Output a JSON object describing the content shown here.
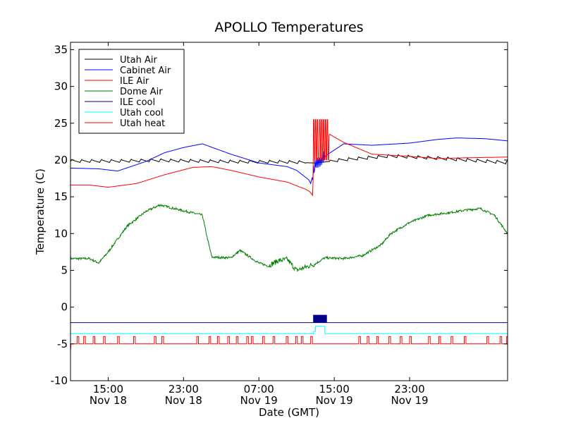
{
  "chart_data": {
    "type": "line",
    "title": "APOLLO Temperatures",
    "xlabel": "Date (GMT)",
    "ylabel": "Temperature (C)",
    "ylim": [
      -10,
      36
    ],
    "xlim": [
      11,
      57.4
    ],
    "x_units": "hours since Nov 18 00:00 GMT",
    "yticks": [
      {
        "value": -10,
        "label": "-10"
      },
      {
        "value": -5,
        "label": "-5"
      },
      {
        "value": 0,
        "label": "0"
      },
      {
        "value": 5,
        "label": "5"
      },
      {
        "value": 10,
        "label": "10"
      },
      {
        "value": 15,
        "label": "15"
      },
      {
        "value": 20,
        "label": "20"
      },
      {
        "value": 25,
        "label": "25"
      },
      {
        "value": 30,
        "label": "30"
      },
      {
        "value": 35,
        "label": "35"
      }
    ],
    "xticks": [
      {
        "value": 15,
        "time": "15:00",
        "date": "Nov 18"
      },
      {
        "value": 23,
        "time": "23:00",
        "date": "Nov 18"
      },
      {
        "value": 31,
        "time": "07:00",
        "date": "Nov 19"
      },
      {
        "value": 39,
        "time": "15:00",
        "date": "Nov 19"
      },
      {
        "value": 47,
        "time": "23:00",
        "date": "Nov 19"
      }
    ],
    "legend_position": "top-left",
    "series": [
      {
        "name": "Utah Air",
        "color": "#000000",
        "pattern": "sawtooth",
        "x": [
          11,
          16,
          20,
          25,
          29,
          33,
          37,
          40,
          45,
          50,
          55,
          57.4
        ],
        "y": [
          19.8,
          19.8,
          19.9,
          19.8,
          19.7,
          19.7,
          19.6,
          20.0,
          20.5,
          20.2,
          19.8,
          19.6
        ]
      },
      {
        "name": "Cabinet Air",
        "color": "#0000ff",
        "pattern": "smooth",
        "x": [
          11,
          14,
          16,
          19,
          21,
          23,
          25,
          28,
          31,
          34,
          35,
          36.3,
          36.5,
          37,
          37.6,
          38,
          40,
          43,
          47,
          50,
          52,
          55,
          57.4
        ],
        "y": [
          18.9,
          18.8,
          18.5,
          19.8,
          21.0,
          21.7,
          22.2,
          20.8,
          19.6,
          19.1,
          18.6,
          17.3,
          16.8,
          19.5,
          20.0,
          20.5,
          22.2,
          22.0,
          22.3,
          22.8,
          23.0,
          22.9,
          22.6
        ]
      },
      {
        "name": "ILE Air",
        "color": "#ff0000",
        "pattern": "smooth",
        "x": [
          11,
          13,
          15,
          18,
          21,
          24,
          26,
          28,
          31,
          34,
          36,
          36.4,
          36.7,
          36.8,
          38.5,
          40,
          43,
          47,
          50,
          53,
          57.4
        ],
        "y": [
          16.6,
          16.6,
          16.3,
          16.8,
          18.0,
          19.0,
          19.1,
          18.6,
          17.7,
          17.0,
          16.0,
          15.7,
          15.2,
          19.5,
          23.5,
          22.4,
          20.8,
          20.5,
          20.2,
          20.3,
          20.4
        ]
      },
      {
        "name": "Dome Air",
        "color": "#008000",
        "pattern": "noisy",
        "x": [
          11,
          13,
          14,
          15,
          17,
          19,
          20.5,
          22,
          25,
          25.5,
          26,
          28,
          29,
          31,
          32,
          33,
          34,
          35,
          37,
          38,
          40,
          42,
          44,
          45,
          47,
          49,
          51,
          53,
          54.5,
          56,
          57.4
        ],
        "y": [
          6.6,
          6.6,
          6.0,
          7.5,
          11.0,
          13.0,
          13.9,
          13.4,
          12.5,
          9.5,
          6.8,
          6.7,
          7.7,
          6.0,
          5.6,
          6.3,
          6.5,
          5.0,
          5.9,
          6.7,
          6.6,
          7.0,
          8.5,
          10.0,
          11.5,
          12.5,
          12.8,
          13.2,
          13.4,
          12.5,
          10.0
        ]
      },
      {
        "name": "ILE cool",
        "color": "#00008b",
        "pattern": "pulses",
        "baseline": -2.1,
        "high": -1.1,
        "bursts": [
          [
            36.8,
            38.2
          ]
        ]
      },
      {
        "name": "Utah cool",
        "color": "#00ffff",
        "pattern": "step",
        "baseline": -3.6,
        "high": -2.6,
        "bursts": [
          [
            36.8,
            38.0
          ]
        ]
      },
      {
        "name": "Utah heat",
        "color": "#ff0000",
        "pattern": "pulses",
        "baseline": -5.0,
        "high": -4.0,
        "pulse_times": [
          11.7,
          12.4,
          13.4,
          14.5,
          16.0,
          17.7,
          19.9,
          20.7,
          24.4,
          25.7,
          26.6,
          27.7,
          28.6,
          29.7,
          30.2,
          31.4,
          32.5,
          33.9,
          34.9,
          35.5,
          36.5,
          41.6,
          42.5,
          43.5,
          44.8,
          46.0,
          47.0,
          49.0,
          50.1,
          51.4,
          52.8,
          55.2,
          56.6,
          57.3
        ]
      }
    ]
  }
}
